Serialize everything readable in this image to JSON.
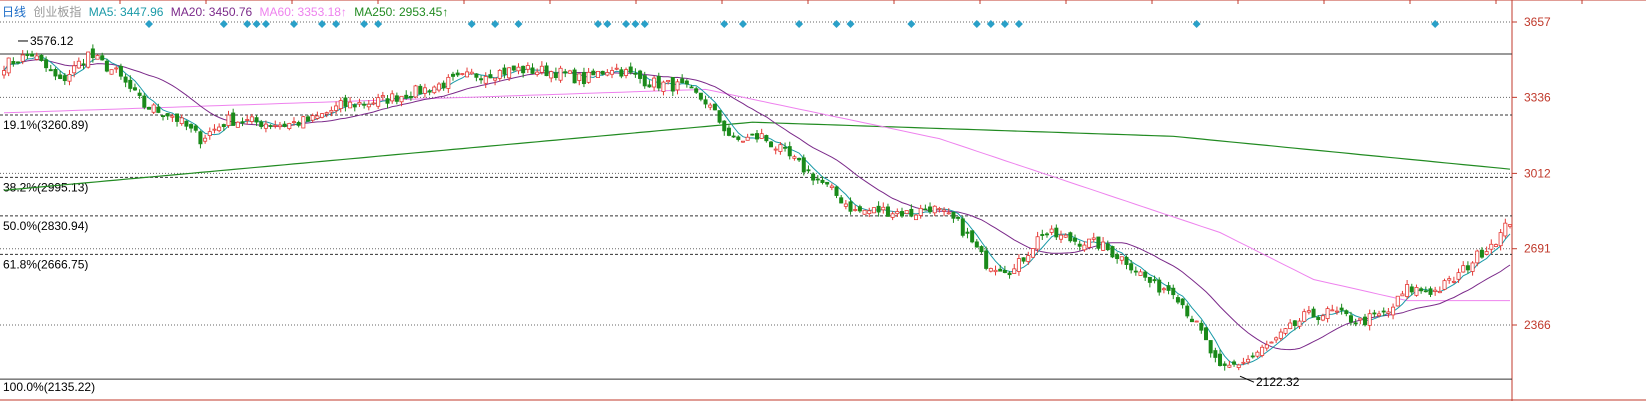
{
  "header": {
    "period_label": "日线",
    "index_name": "创业板指",
    "ma5": "MA5: 3447.96",
    "ma20": "MA20: 3450.76",
    "ma60": "MA60: 3353.18↑",
    "ma250": "MA250: 2953.45↑"
  },
  "colors": {
    "up": "#e53935",
    "down": "#1a8a1a",
    "ma5": "#1a9aa8",
    "ma20": "#7b2a8a",
    "ma60": "#ee82ee",
    "ma250": "#228b22",
    "axis_text": "#c0392b",
    "marker": "#2aa0c8",
    "period_label": "#1e6ec8",
    "index_name": "#999999"
  },
  "chart_data": {
    "type": "candlestick",
    "title": "",
    "ylim": [
      2100,
      3720
    ],
    "y_ticks": [
      3657,
      3336,
      3012,
      2691,
      2366
    ],
    "grid": "dotted horizontal",
    "fib_levels": [
      {
        "label": "19.1%(3260.89)",
        "value": 3260.89
      },
      {
        "label": "38.2%(2995.13)",
        "value": 2995.13
      },
      {
        "label": "50.0%(2830.94)",
        "value": 2830.94
      },
      {
        "label": "61.8%(2666.75)",
        "value": 2666.75
      },
      {
        "label": "100.0%(2135.22)",
        "value": 2135.22
      }
    ],
    "high_label": "3576.12",
    "high_value": 3576.12,
    "low_label": "2122.32",
    "low_value": 2122.32,
    "anchors": [
      [
        0,
        3475
      ],
      [
        6,
        3520
      ],
      [
        12,
        3400
      ],
      [
        18,
        3520
      ],
      [
        24,
        3440
      ],
      [
        30,
        3300
      ],
      [
        36,
        3260
      ],
      [
        42,
        3160
      ],
      [
        48,
        3240
      ],
      [
        54,
        3230
      ],
      [
        60,
        3220
      ],
      [
        66,
        3240
      ],
      [
        72,
        3300
      ],
      [
        80,
        3320
      ],
      [
        90,
        3370
      ],
      [
        100,
        3430
      ],
      [
        110,
        3455
      ],
      [
        118,
        3445
      ],
      [
        124,
        3410
      ],
      [
        130,
        3465
      ],
      [
        138,
        3400
      ],
      [
        145,
        3380
      ],
      [
        150,
        3320
      ],
      [
        156,
        3150
      ],
      [
        162,
        3170
      ],
      [
        168,
        3080
      ],
      [
        175,
        2970
      ],
      [
        182,
        2850
      ],
      [
        188,
        2855
      ],
      [
        194,
        2840
      ],
      [
        198,
        2870
      ],
      [
        204,
        2800
      ],
      [
        210,
        2630
      ],
      [
        216,
        2600
      ],
      [
        222,
        2760
      ],
      [
        228,
        2730
      ],
      [
        234,
        2710
      ],
      [
        240,
        2640
      ],
      [
        246,
        2530
      ],
      [
        250,
        2520
      ],
      [
        256,
        2330
      ],
      [
        260,
        2170
      ],
      [
        266,
        2220
      ],
      [
        272,
        2300
      ],
      [
        278,
        2400
      ],
      [
        284,
        2420
      ],
      [
        290,
        2380
      ],
      [
        296,
        2420
      ],
      [
        300,
        2520
      ],
      [
        306,
        2510
      ],
      [
        310,
        2560
      ],
      [
        316,
        2680
      ],
      [
        320,
        2750
      ],
      [
        322,
        2810
      ]
    ],
    "ma250_points": [
      [
        0,
        2940
      ],
      [
        160,
        3230
      ],
      [
        250,
        3170
      ],
      [
        322,
        3030
      ]
    ],
    "ma60_points": [
      [
        0,
        3270
      ],
      [
        150,
        3370
      ],
      [
        200,
        3160
      ],
      [
        260,
        2760
      ],
      [
        280,
        2560
      ],
      [
        300,
        2470
      ],
      [
        322,
        2470
      ]
    ],
    "markers_at_bars": [
      31,
      47,
      52,
      54,
      56,
      62,
      68,
      71,
      77,
      80,
      100,
      105,
      110,
      127,
      129,
      133,
      135,
      137,
      154,
      158,
      170,
      178,
      181,
      194,
      208,
      211,
      214,
      217,
      255,
      306
    ]
  }
}
